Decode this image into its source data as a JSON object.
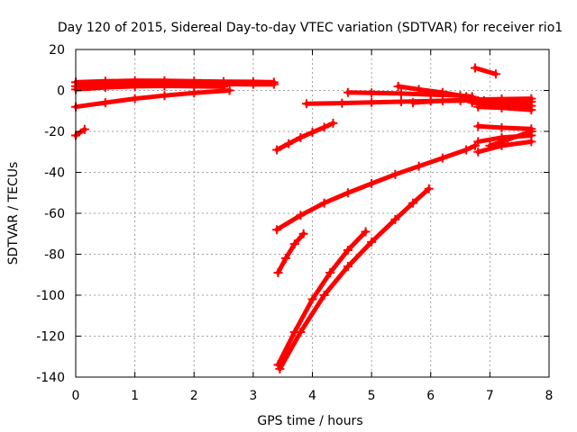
{
  "chart_data": {
    "type": "scatter",
    "title": "Day 120 of 2015, Sidereal Day-to-day VTEC variation (SDTVAR) for receiver rio1",
    "xlabel": "GPS time / hours",
    "ylabel": "SDTVAR / TECUs",
    "xlim": [
      0,
      8
    ],
    "ylim": [
      -140,
      20
    ],
    "xticks": [
      "0",
      "1",
      "2",
      "3",
      "4",
      "5",
      "6",
      "7",
      "8"
    ],
    "yticks": [
      "-140",
      "-120",
      "-100",
      "-80",
      "-60",
      "-40",
      "-20",
      "0",
      "20"
    ],
    "grid": true,
    "marker_color": "#ff0000",
    "series": [
      {
        "x": [
          0.0,
          0.5,
          1.0,
          1.5,
          2.0,
          2.5,
          3.0,
          3.35
        ],
        "y": [
          4,
          4.5,
          4.8,
          4.7,
          4.5,
          4.3,
          4.2,
          4.0
        ]
      },
      {
        "x": [
          0.0,
          0.5,
          1.0,
          1.5,
          2.0,
          2.5,
          3.0,
          3.35
        ],
        "y": [
          2,
          2.8,
          3.2,
          3.4,
          3.3,
          3.1,
          3.0,
          3.0
        ]
      },
      {
        "x": [
          0.0,
          0.5,
          1.0,
          1.5,
          2.0,
          2.5
        ],
        "y": [
          0.5,
          1.5,
          2.0,
          2.2,
          2.0,
          1.8
        ]
      },
      {
        "x": [
          0.0,
          0.5,
          1.0,
          1.5,
          2.0,
          2.6
        ],
        "y": [
          -8,
          -6,
          -4,
          -2.5,
          -1.2,
          0
        ]
      },
      {
        "x": [
          0.0,
          0.15
        ],
        "y": [
          -22,
          -19
        ]
      },
      {
        "x": [
          3.4,
          3.6,
          3.8,
          4.0,
          4.2,
          4.35
        ],
        "y": [
          -29,
          -26,
          -23,
          -20.5,
          -18,
          -16
        ]
      },
      {
        "x": [
          3.9,
          4.5,
          5.0,
          5.5,
          6.0,
          6.5,
          6.7
        ],
        "y": [
          -6.5,
          -6.2,
          -5.8,
          -5.5,
          -5.2,
          -5.0,
          -4.8
        ]
      },
      {
        "x": [
          4.6,
          5.0,
          5.5,
          6.0,
          6.5,
          6.7
        ],
        "y": [
          -1,
          -1.2,
          -1.5,
          -2.0,
          -2.5,
          -3.0
        ]
      },
      {
        "x": [
          5.45,
          5.8,
          6.2,
          6.6,
          6.9
        ],
        "y": [
          2,
          0.5,
          -1,
          -3,
          -5
        ]
      },
      {
        "x": [
          5.7,
          6.2,
          6.7,
          7.2,
          7.7
        ],
        "y": [
          -6,
          -5,
          -4.5,
          -4.2,
          -4.0
        ]
      },
      {
        "x": [
          6.7,
          7.0,
          7.4,
          7.7
        ],
        "y": [
          -6,
          -6.5,
          -7,
          -7.5
        ]
      },
      {
        "x": [
          6.8,
          7.2,
          7.7
        ],
        "y": [
          -8,
          -8.5,
          -9.5
        ]
      },
      {
        "x": [
          6.75,
          7.1
        ],
        "y": [
          11,
          8
        ]
      },
      {
        "x": [
          6.8,
          7.2,
          7.7
        ],
        "y": [
          -17.5,
          -18.2,
          -18.8
        ]
      },
      {
        "x": [
          6.8,
          7.2,
          7.7
        ],
        "y": [
          -25,
          -23,
          -22
        ]
      },
      {
        "x": [
          6.8,
          7.2,
          7.7
        ],
        "y": [
          -30,
          -27,
          -25
        ]
      },
      {
        "x": [
          7.0,
          7.3,
          7.7
        ],
        "y": [
          -27,
          -24,
          -20
        ]
      },
      {
        "x": [
          3.4,
          3.8,
          4.2,
          4.6,
          5.0,
          5.4,
          5.8,
          6.2,
          6.6,
          6.75
        ],
        "y": [
          -68,
          -61,
          -55,
          -50,
          -45.5,
          -41,
          -37,
          -33,
          -29,
          -27
        ]
      },
      {
        "x": [
          3.42,
          3.55,
          3.7,
          3.85
        ],
        "y": [
          -89,
          -82,
          -75,
          -70
        ]
      },
      {
        "x": [
          3.42,
          3.7,
          4.0,
          4.3,
          4.6,
          4.9
        ],
        "y": [
          -134,
          -118,
          -102,
          -89,
          -78,
          -69
        ]
      },
      {
        "x": [
          3.45,
          3.8,
          4.2,
          4.6,
          5.0,
          5.4,
          5.7,
          5.97
        ],
        "y": [
          -136,
          -118,
          -100,
          -86,
          -74,
          -63,
          -55,
          -48
        ]
      },
      {
        "x": [
          6.8,
          7.2,
          7.7
        ],
        "y": [
          -5,
          -5.2,
          -5.5
        ]
      }
    ]
  }
}
